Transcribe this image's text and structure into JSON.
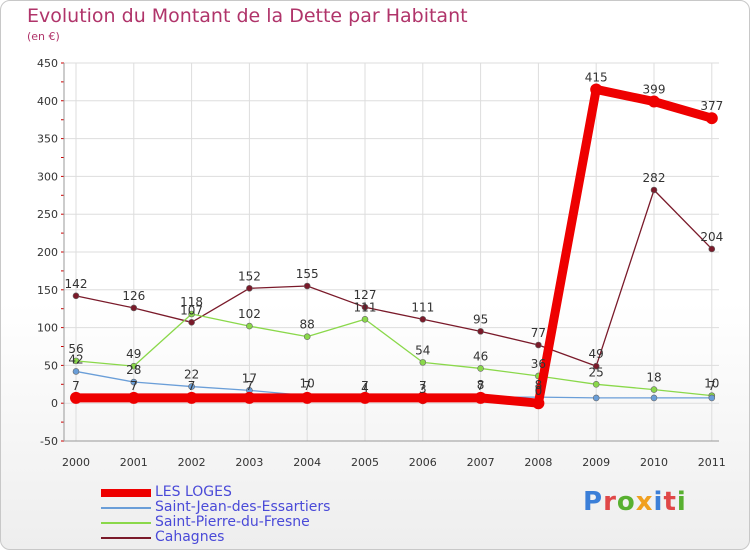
{
  "title": "Evolution du Montant de la Dette par Habitant",
  "unit": "(en €)",
  "logo": {
    "text": "Proxiti",
    "colors": [
      "#3b7fd8",
      "#e04848",
      "#58b030",
      "#f0a020",
      "#3b7fd8",
      "#e04848",
      "#58b030"
    ]
  },
  "colors": {
    "title": "#b0346a",
    "legend_text": "#4a4ad8",
    "grid": "#dddddd",
    "axis_text": "#333333"
  },
  "chart_data": {
    "type": "line",
    "x": [
      "2000",
      "2001",
      "2002",
      "2003",
      "2004",
      "2005",
      "2006",
      "2007",
      "2008",
      "2009",
      "2010",
      "2011"
    ],
    "ylim": [
      -50,
      450
    ],
    "yticks": [
      -50,
      0,
      50,
      100,
      150,
      200,
      250,
      300,
      350,
      400,
      450
    ],
    "grid": true,
    "legend_position": "bottom-left",
    "series": [
      {
        "name": "Cahagnes",
        "color": "#7a1a2a",
        "values": [
          142,
          126,
          107,
          152,
          155,
          127,
          111,
          95,
          77,
          49,
          282,
          204
        ],
        "labels": [
          "142",
          "126",
          "107",
          "152",
          "155",
          "127",
          "111",
          "95",
          "77",
          "49",
          "282",
          "204"
        ]
      },
      {
        "name": "Saint-Pierre-du-Fresne",
        "color": "#8ad84a",
        "values": [
          56,
          49,
          118,
          102,
          88,
          111,
          54,
          46,
          36,
          25,
          18,
          10
        ],
        "labels": [
          "56",
          "49",
          "118",
          "102",
          "88",
          "111",
          "54",
          "46",
          "36",
          "25",
          "18",
          "10"
        ]
      },
      {
        "name": "Saint-Jean-des-Essartiers",
        "color": "#6a9ed8",
        "values": [
          42,
          28,
          22,
          17,
          10,
          4,
          3,
          8,
          8,
          7,
          7,
          7
        ],
        "labels": [
          "42",
          "28",
          "22",
          "17",
          "10",
          "4",
          "3",
          "8",
          "8",
          "",
          "",
          "7"
        ]
      },
      {
        "name": "LES LOGES",
        "color": "#ee0000",
        "values": [
          7,
          7,
          7,
          7,
          7,
          7,
          7,
          7,
          0,
          415,
          399,
          377
        ],
        "labels": [
          "7",
          "7",
          "7",
          "7",
          "7",
          "7",
          "7",
          "7",
          "0",
          "415",
          "399",
          "377"
        ]
      }
    ],
    "legend_order": [
      "LES LOGES",
      "Saint-Jean-des-Essartiers",
      "Saint-Pierre-du-Fresne",
      "Cahagnes"
    ]
  }
}
